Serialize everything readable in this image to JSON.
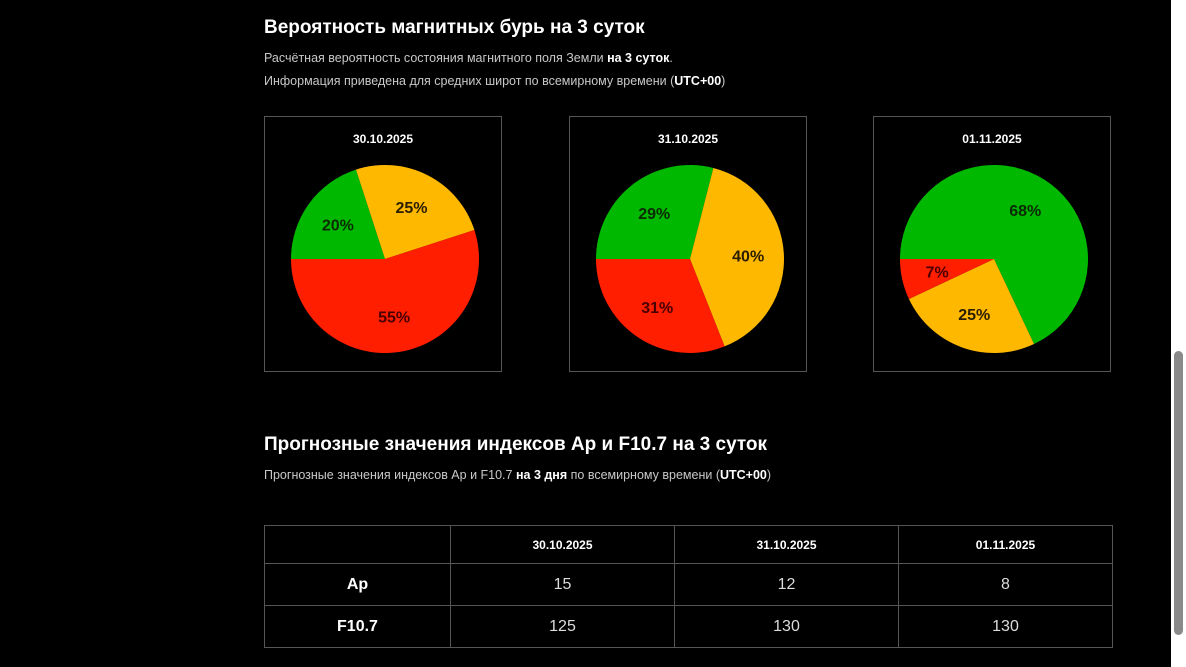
{
  "section1": {
    "title": "Вероятность магнитных бурь на 3 суток",
    "line1_prefix": "Расчётная вероятность состояния магнитного поля Земли ",
    "line1_bold": "на 3 суток",
    "line1_suffix": ".",
    "line2_prefix": "Информация приведена для средних широт по всемирному времени (",
    "line2_bold": "UTC+00",
    "line2_suffix": ")"
  },
  "chart_data": [
    {
      "type": "pie",
      "title": "30.10.2025",
      "slices": [
        {
          "value": 20,
          "label": "20%",
          "color": "#00b800"
        },
        {
          "value": 25,
          "label": "25%",
          "color": "#ffb800"
        },
        {
          "value": 55,
          "label": "55%",
          "color": "#ff1e00"
        }
      ]
    },
    {
      "type": "pie",
      "title": "31.10.2025",
      "slices": [
        {
          "value": 29,
          "label": "29%",
          "color": "#00b800"
        },
        {
          "value": 40,
          "label": "40%",
          "color": "#ffb800"
        },
        {
          "value": 31,
          "label": "31%",
          "color": "#ff1e00"
        }
      ]
    },
    {
      "type": "pie",
      "title": "01.11.2025",
      "slices": [
        {
          "value": 68,
          "label": "68%",
          "color": "#00b800"
        },
        {
          "value": 25,
          "label": "25%",
          "color": "#ffb800"
        },
        {
          "value": 7,
          "label": "7%",
          "color": "#ff1e00"
        }
      ]
    }
  ],
  "section2": {
    "title": "Прогнозные значения индексов Ap и F10.7 на 3 суток",
    "line_prefix": "Прогнозные значения индексов Ap и F10.7 ",
    "line_bold": "на 3 дня",
    "line_mid": " по всемирному времени (",
    "line_bold2": "UTC+00",
    "line_suffix": ")"
  },
  "table": {
    "headers": [
      "",
      "30.10.2025",
      "31.10.2025",
      "01.11.2025"
    ],
    "rows": [
      {
        "label": "Ap",
        "values": [
          "15",
          "12",
          "8"
        ]
      },
      {
        "label": "F10.7",
        "values": [
          "125",
          "130",
          "130"
        ]
      }
    ]
  }
}
